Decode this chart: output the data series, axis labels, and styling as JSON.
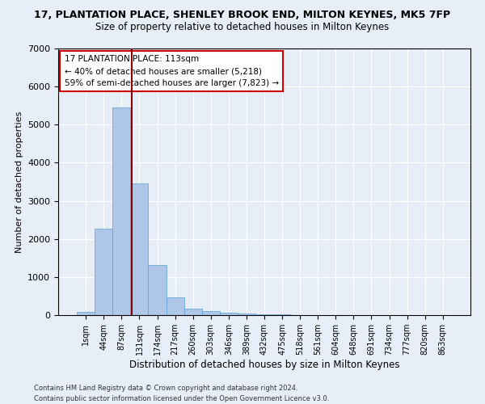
{
  "title": "17, PLANTATION PLACE, SHENLEY BROOK END, MILTON KEYNES, MK5 7FP",
  "subtitle": "Size of property relative to detached houses in Milton Keynes",
  "xlabel": "Distribution of detached houses by size in Milton Keynes",
  "ylabel": "Number of detached properties",
  "bar_color": "#aec6e8",
  "bar_edge_color": "#5a9fd4",
  "bg_color": "#e8eef8",
  "grid_color": "#ffffff",
  "categories": [
    "1sqm",
    "44sqm",
    "87sqm",
    "131sqm",
    "174sqm",
    "217sqm",
    "260sqm",
    "303sqm",
    "346sqm",
    "389sqm",
    "432sqm",
    "475sqm",
    "518sqm",
    "561sqm",
    "604sqm",
    "648sqm",
    "691sqm",
    "734sqm",
    "777sqm",
    "820sqm",
    "863sqm"
  ],
  "values": [
    80,
    2280,
    5460,
    3450,
    1310,
    460,
    175,
    100,
    65,
    50,
    30,
    15,
    8,
    5,
    3,
    2,
    2,
    1,
    1,
    1,
    0
  ],
  "ylim": [
    0,
    7000
  ],
  "yticks": [
    0,
    1000,
    2000,
    3000,
    4000,
    5000,
    6000,
    7000
  ],
  "property_label": "17 PLANTATION PLACE: 113sqm",
  "annotation_line1": "← 40% of detached houses are smaller (5,218)",
  "annotation_line2": "59% of semi-detached houses are larger (7,823) →",
  "vline_color": "#8b0000",
  "annotation_box_edge": "#cc0000",
  "footer1": "Contains HM Land Registry data © Crown copyright and database right 2024.",
  "footer2": "Contains public sector information licensed under the Open Government Licence v3.0."
}
